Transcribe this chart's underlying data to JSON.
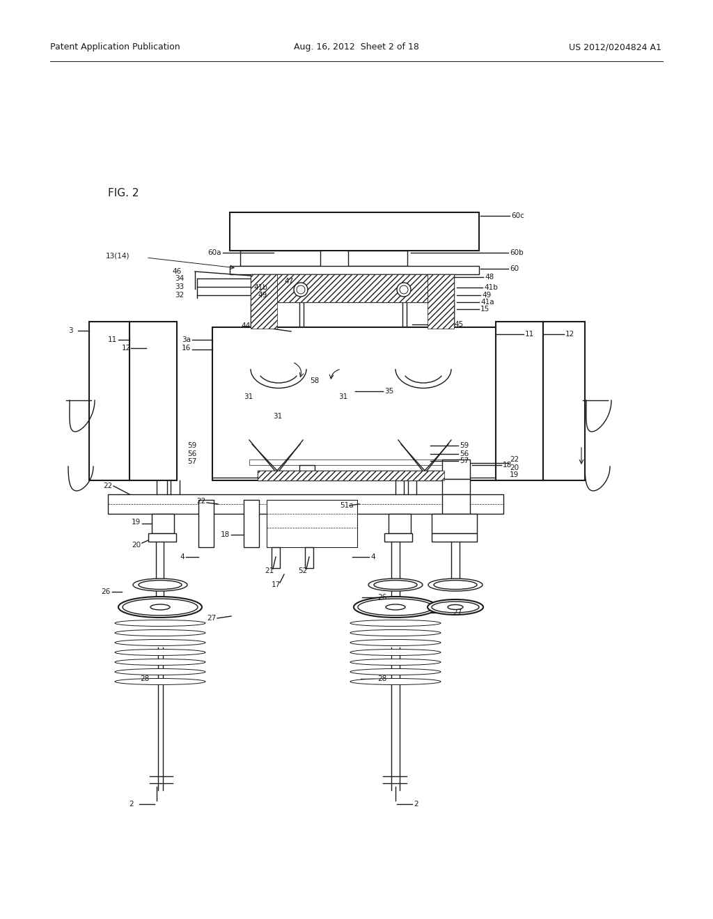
{
  "bg_color": "#ffffff",
  "line_color": "#1a1a1a",
  "header_left": "Patent Application Publication",
  "header_mid": "Aug. 16, 2012  Sheet 2 of 18",
  "header_right": "US 2012/0204824 A1",
  "fig_label": "FIG. 2"
}
